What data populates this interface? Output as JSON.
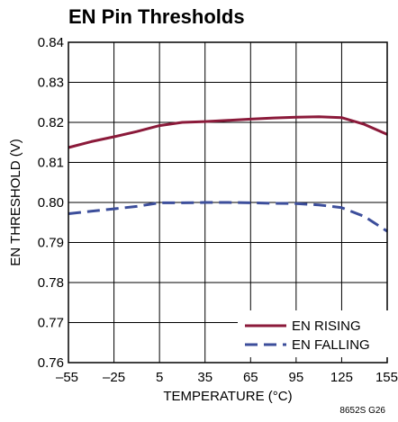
{
  "chart_data": {
    "type": "line",
    "title": "EN Pin Thresholds",
    "xlabel": "TEMPERATURE (°C)",
    "ylabel": "EN THRESHOLD (V)",
    "figure_id": "8652S G26",
    "xlim": [
      -55,
      155
    ],
    "ylim": [
      0.76,
      0.84
    ],
    "x_ticks": [
      -55,
      -25,
      5,
      35,
      65,
      95,
      125,
      155
    ],
    "x_tick_labels": [
      "–55",
      "–25",
      "5",
      "35",
      "65",
      "95",
      "125",
      "155"
    ],
    "y_ticks": [
      0.76,
      0.77,
      0.78,
      0.79,
      0.8,
      0.81,
      0.82,
      0.83,
      0.84
    ],
    "y_tick_labels": [
      "0.76",
      "0.77",
      "0.78",
      "0.79",
      "0.80",
      "0.81",
      "0.82",
      "0.83",
      "0.84"
    ],
    "grid": true,
    "legend_position": "bottom-right",
    "series": [
      {
        "name": "EN RISING",
        "color": "#8b1a3a",
        "style": "solid",
        "x": [
          -55,
          -40,
          -25,
          -10,
          5,
          20,
          35,
          50,
          65,
          80,
          95,
          110,
          125,
          140,
          155
        ],
        "y": [
          0.8137,
          0.8152,
          0.8164,
          0.8177,
          0.8192,
          0.82,
          0.8202,
          0.8205,
          0.8208,
          0.8211,
          0.8213,
          0.8214,
          0.8212,
          0.8195,
          0.817
        ]
      },
      {
        "name": "EN FALLING",
        "color": "#3c4e9b",
        "style": "dashed",
        "x": [
          -55,
          -40,
          -25,
          -10,
          5,
          20,
          35,
          50,
          65,
          80,
          95,
          110,
          125,
          140,
          155
        ],
        "y": [
          0.7972,
          0.7978,
          0.7984,
          0.799,
          0.7999,
          0.7999,
          0.8,
          0.8,
          0.7999,
          0.7998,
          0.7997,
          0.7994,
          0.7987,
          0.7965,
          0.7928
        ]
      }
    ]
  }
}
